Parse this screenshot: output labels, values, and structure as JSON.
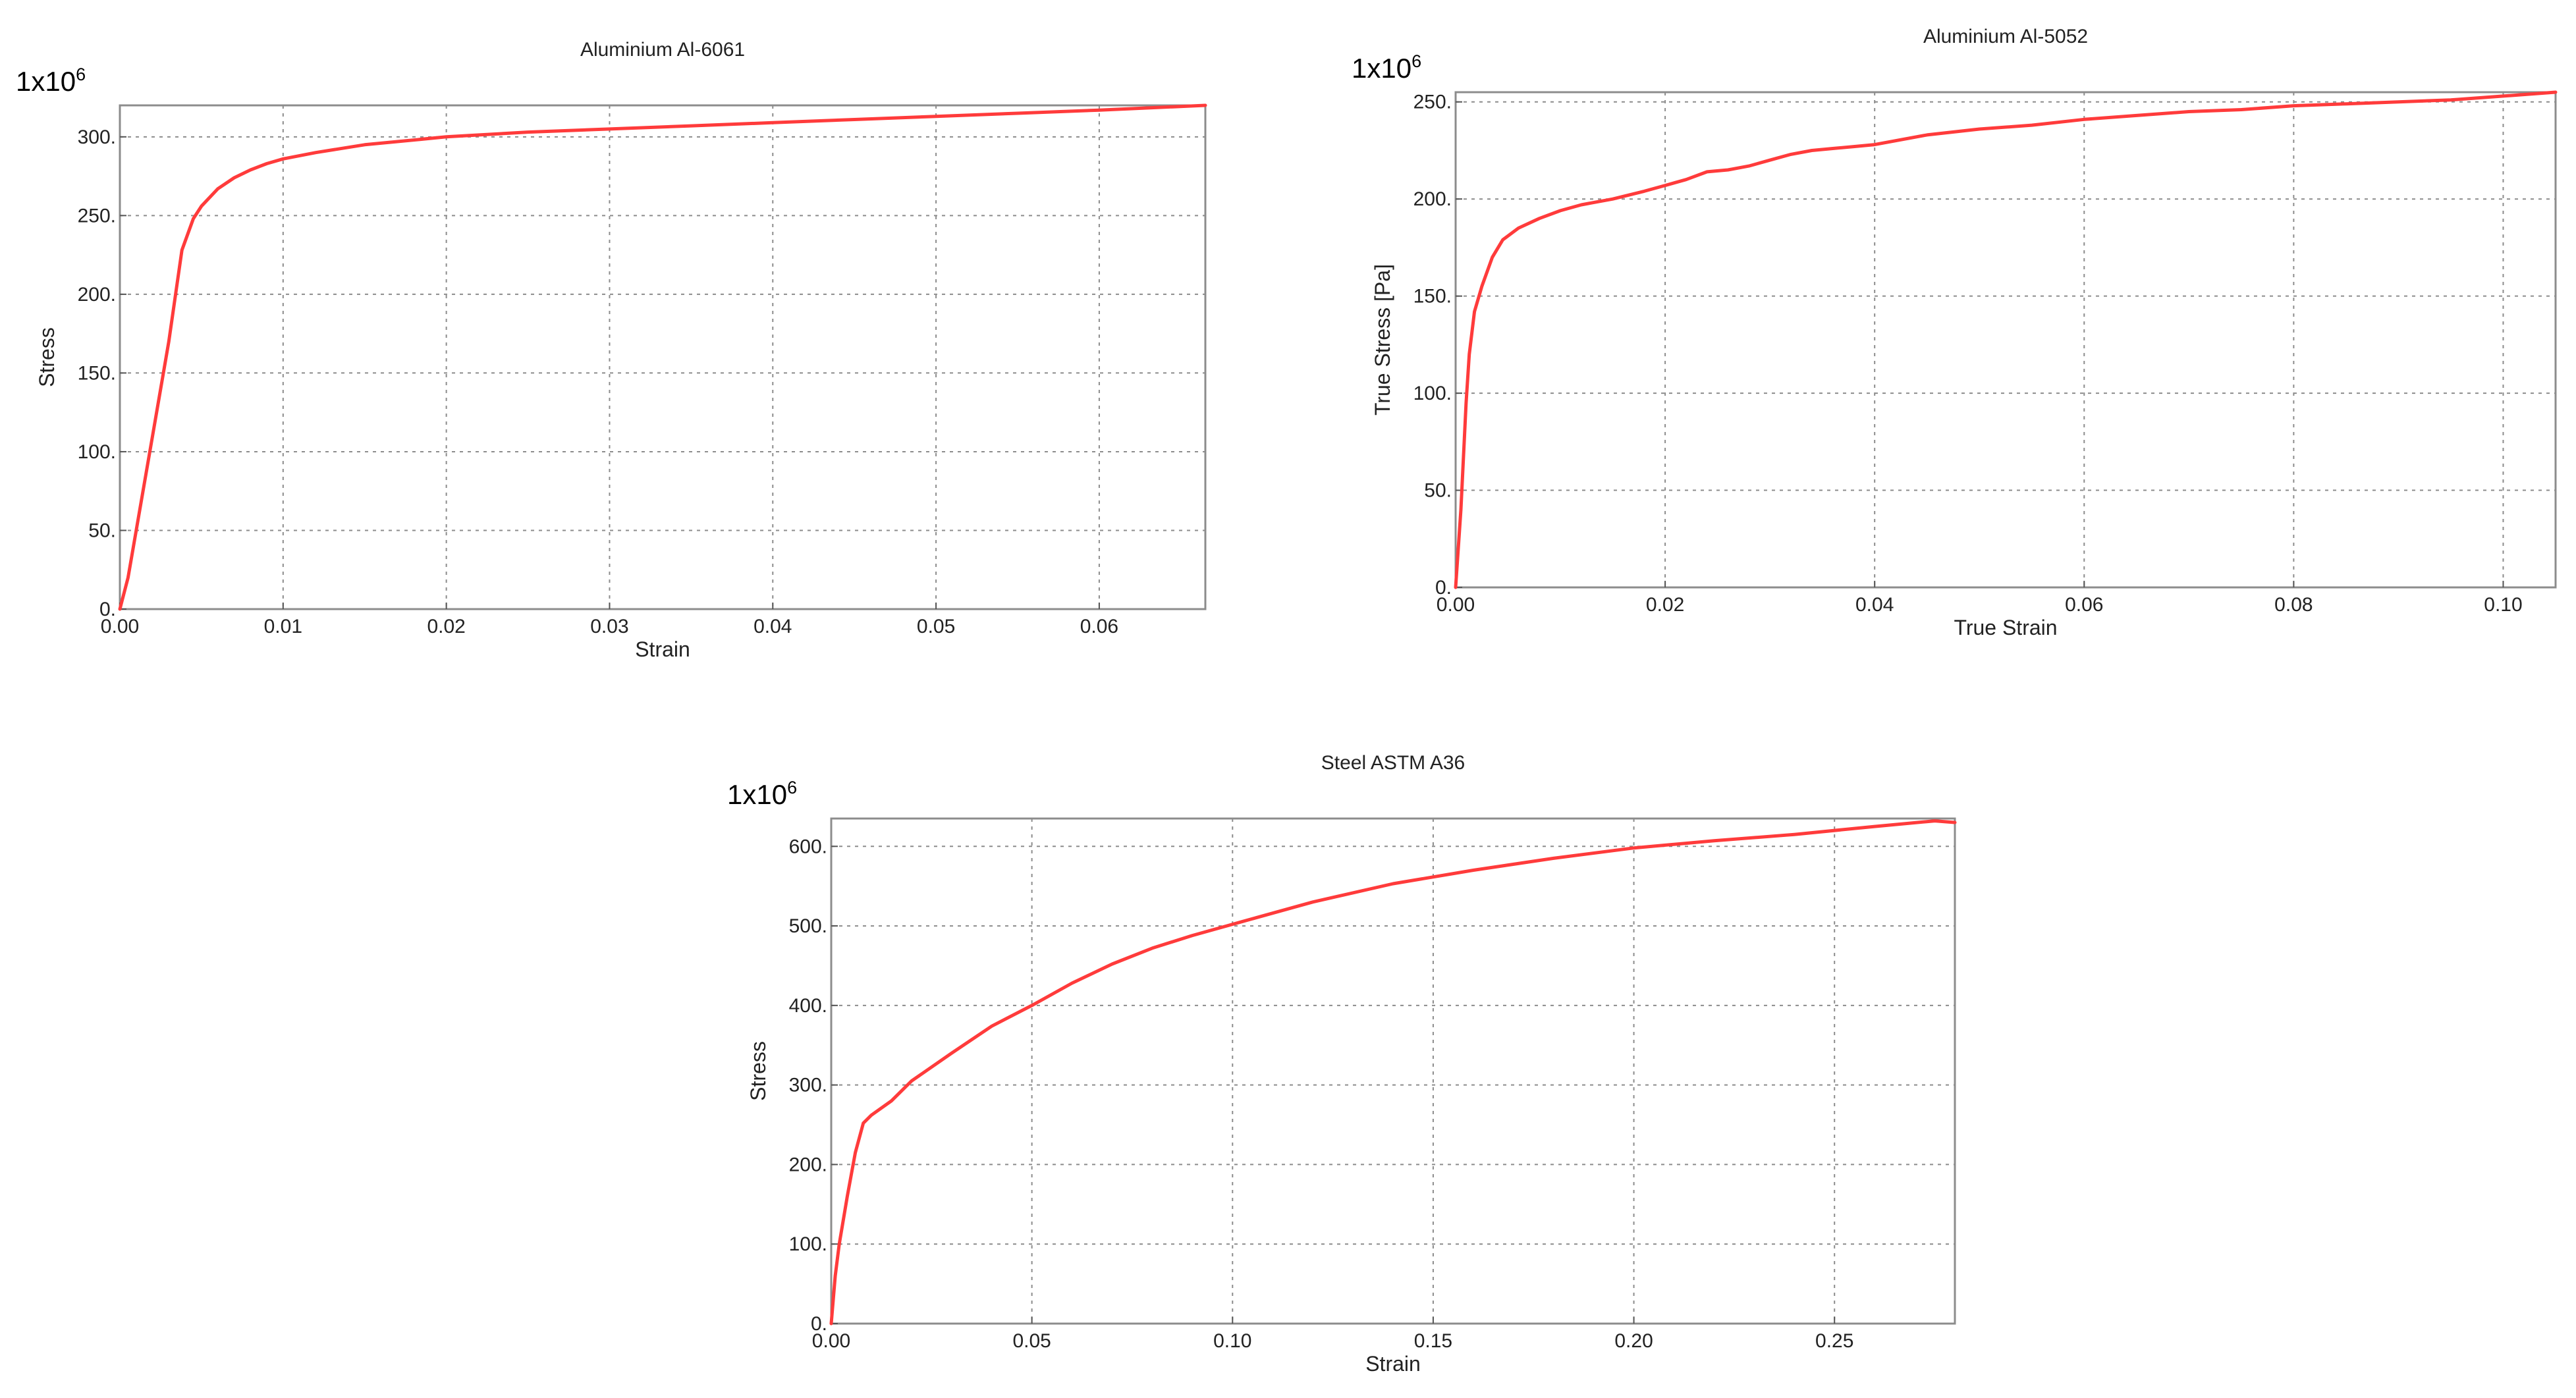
{
  "chart_data": [
    {
      "type": "line",
      "title": "Aluminium Al-6061",
      "xlabel": "Strain",
      "ylabel": "Stress",
      "y_multiplier": {
        "base": "1x10",
        "exponent": "6"
      },
      "xlim": [
        0,
        0.0665
      ],
      "ylim": [
        0,
        320
      ],
      "xticks": [
        0,
        0.01,
        0.02,
        0.03,
        0.04,
        0.05,
        0.06
      ],
      "xtick_labels": [
        "0.00",
        "0.01",
        "0.02",
        "0.03",
        "0.04",
        "0.05",
        "0.06"
      ],
      "yticks": [
        0,
        50,
        100,
        150,
        200,
        250,
        300
      ],
      "ytick_labels": [
        "0.",
        "50.",
        "100.",
        "150.",
        "200.",
        "250.",
        "300."
      ],
      "grid": true,
      "color": "#ff3b3b",
      "x": [
        0,
        0.0005,
        0.001,
        0.002,
        0.003,
        0.0038,
        0.0045,
        0.005,
        0.006,
        0.007,
        0.008,
        0.009,
        0.01,
        0.012,
        0.015,
        0.02,
        0.025,
        0.03,
        0.035,
        0.04,
        0.045,
        0.05,
        0.055,
        0.06,
        0.0665
      ],
      "y": [
        0,
        20,
        50,
        110,
        170,
        228,
        248,
        256,
        267,
        274,
        279,
        283,
        286,
        290,
        295,
        300,
        303,
        305,
        307,
        309,
        311,
        313,
        315,
        317,
        320
      ]
    },
    {
      "type": "line",
      "title": "Aluminium Al-5052",
      "xlabel": "True Strain",
      "ylabel": "True Stress [Pa]",
      "y_multiplier": {
        "base": "1x10",
        "exponent": "6"
      },
      "xlim": [
        0,
        0.105
      ],
      "ylim": [
        0,
        255
      ],
      "xticks": [
        0,
        0.02,
        0.04,
        0.06,
        0.08,
        0.1
      ],
      "xtick_labels": [
        "0.00",
        "0.02",
        "0.04",
        "0.06",
        "0.08",
        "0.10"
      ],
      "yticks": [
        0,
        50,
        100,
        150,
        200,
        250
      ],
      "ytick_labels": [
        "0.",
        "50.",
        "100.",
        "150.",
        "200.",
        "250."
      ],
      "grid": true,
      "color": "#ff3b3b",
      "x": [
        0,
        0.0005,
        0.001,
        0.0013,
        0.0018,
        0.0025,
        0.0035,
        0.0045,
        0.006,
        0.008,
        0.01,
        0.012,
        0.015,
        0.018,
        0.02,
        0.022,
        0.024,
        0.026,
        0.028,
        0.03,
        0.032,
        0.034,
        0.036,
        0.038,
        0.04,
        0.045,
        0.05,
        0.055,
        0.06,
        0.065,
        0.07,
        0.075,
        0.08,
        0.085,
        0.09,
        0.095,
        0.1,
        0.105
      ],
      "y": [
        0,
        40,
        95,
        120,
        142,
        155,
        170,
        179,
        185,
        190,
        194,
        197,
        200,
        204,
        207,
        210,
        214,
        215,
        217,
        220,
        223,
        225,
        226,
        227,
        228,
        233,
        236,
        238,
        241,
        243,
        245,
        246,
        248,
        249,
        250,
        251,
        253,
        255
      ]
    },
    {
      "type": "line",
      "title": "Steel ASTM A36",
      "xlabel": "Strain",
      "ylabel": "Stress",
      "y_multiplier": {
        "base": "1x10",
        "exponent": "6"
      },
      "xlim": [
        0,
        0.28
      ],
      "ylim": [
        0,
        635
      ],
      "xticks": [
        0,
        0.05,
        0.1,
        0.15,
        0.2,
        0.25
      ],
      "xtick_labels": [
        "0.00",
        "0.05",
        "0.10",
        "0.15",
        "0.20",
        "0.25"
      ],
      "yticks": [
        0,
        100,
        200,
        300,
        400,
        500,
        600
      ],
      "ytick_labels": [
        "0.",
        "100.",
        "200.",
        "300.",
        "400.",
        "500.",
        "600."
      ],
      "grid": true,
      "color": "#ff3b3b",
      "x": [
        0,
        0.001,
        0.002,
        0.004,
        0.006,
        0.008,
        0.01,
        0.015,
        0.02,
        0.03,
        0.04,
        0.05,
        0.06,
        0.07,
        0.08,
        0.09,
        0.1,
        0.12,
        0.14,
        0.16,
        0.18,
        0.2,
        0.22,
        0.24,
        0.26,
        0.275,
        0.28
      ],
      "y": [
        0,
        60,
        100,
        160,
        215,
        252,
        262,
        280,
        305,
        340,
        374,
        400,
        428,
        452,
        472,
        488,
        502,
        530,
        553,
        570,
        585,
        598,
        607,
        615,
        625,
        632,
        630
      ]
    }
  ]
}
